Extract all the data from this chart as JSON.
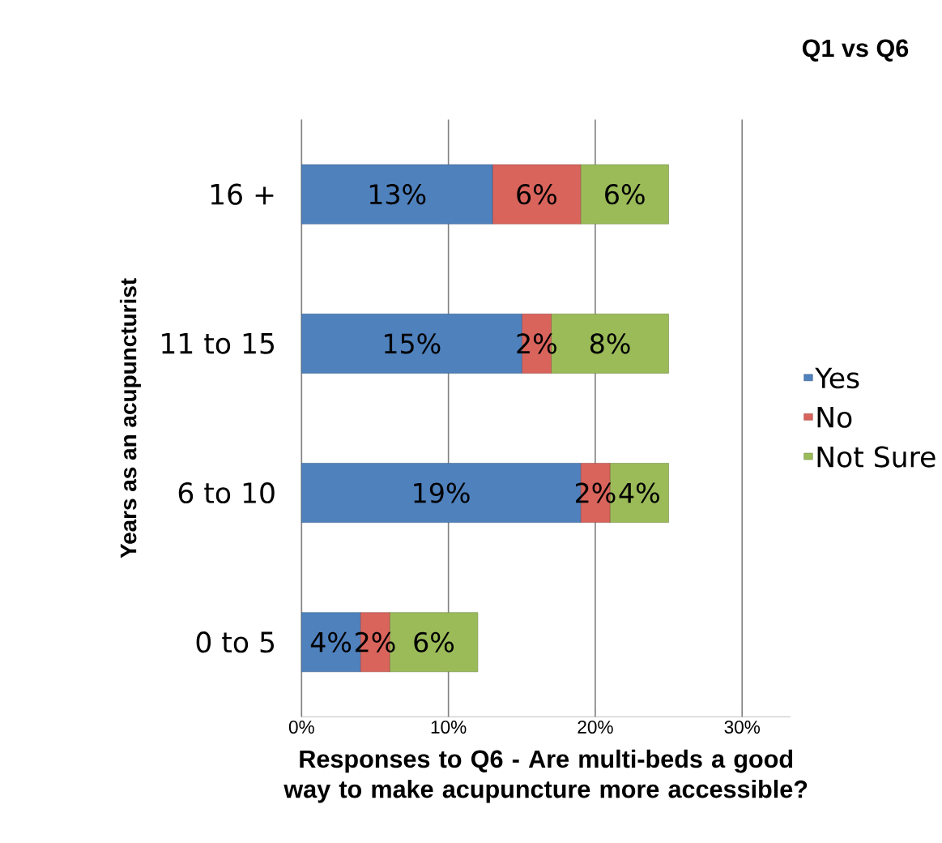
{
  "chart_data": {
    "type": "bar",
    "orientation": "horizontal",
    "stacked": true,
    "title": "Q1 vs Q6",
    "xlabel": "Responses to Q6 - Are multi-beds a good way to make acupuncture more accessible?",
    "ylabel": "Years as an acupuncturist",
    "categories": [
      "16 +",
      "11 to 15",
      "6 to 10",
      "0 to 5"
    ],
    "series": [
      {
        "name": "Yes",
        "color": "#4f81bd",
        "values": [
          13,
          15,
          19,
          4
        ],
        "value_labels": [
          "13%",
          "15%",
          "19%",
          "4%"
        ]
      },
      {
        "name": "No",
        "color": "#d9645c",
        "values": [
          6,
          2,
          2,
          2
        ],
        "value_labels": [
          "6%",
          "2%",
          "2%",
          "2%"
        ]
      },
      {
        "name": "Not Sure",
        "color": "#9bbb59",
        "values": [
          6,
          8,
          4,
          6
        ],
        "value_labels": [
          "6%",
          "8%",
          "4%",
          "6%"
        ]
      }
    ],
    "xlim": [
      0,
      33.3
    ],
    "xticks": [
      {
        "value": 0,
        "label": "0%"
      },
      {
        "value": 10,
        "label": "10%"
      },
      {
        "value": 20,
        "label": "20%"
      },
      {
        "value": 30,
        "label": "30%"
      }
    ],
    "grid": "x",
    "legend": "right"
  }
}
